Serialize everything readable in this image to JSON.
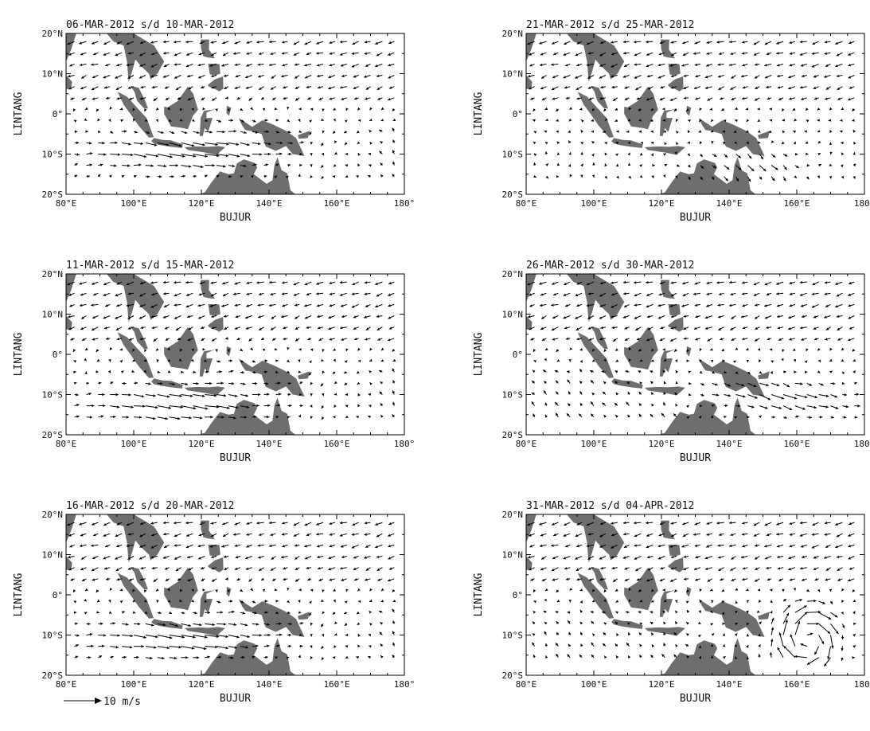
{
  "panels": [
    {
      "title": "06-MAR-2012 s/d 10-MAR-2012",
      "pattern": "southwest-jet",
      "tilt": -1
    },
    {
      "title": "21-MAR-2012 s/d 25-MAR-2012",
      "pattern": "shear-east",
      "tilt": 1
    },
    {
      "title": "11-MAR-2012 s/d 15-MAR-2012",
      "pattern": "southwest-jet",
      "tilt": 1
    },
    {
      "title": "26-MAR-2012 s/d 30-MAR-2012",
      "pattern": "southeast-jet",
      "tilt": -1
    },
    {
      "title": "16-MAR-2012 s/d 20-MAR-2012",
      "pattern": "southwest-jet",
      "tilt": 0
    },
    {
      "title": "31-MAR-2012 s/d 04-APR-2012",
      "pattern": "cyclone-east",
      "tilt": 1
    }
  ],
  "axes": {
    "xlabel": "BUJUR",
    "ylabel": "LINTANG",
    "x_ticks": [
      "80°E",
      "100°E",
      "120°E",
      "140°E",
      "160°E",
      "180°"
    ],
    "y_ticks": [
      "20°N",
      "10°N",
      "0°",
      "10°S",
      "20°S"
    ],
    "lon_range": [
      80,
      180
    ],
    "lat_range": [
      -20,
      20
    ]
  },
  "reference_vector": {
    "label": "10 m/s"
  },
  "colors": {
    "land": "#6e6e6e",
    "vectors": "#000000",
    "background": "#ffffff"
  }
}
